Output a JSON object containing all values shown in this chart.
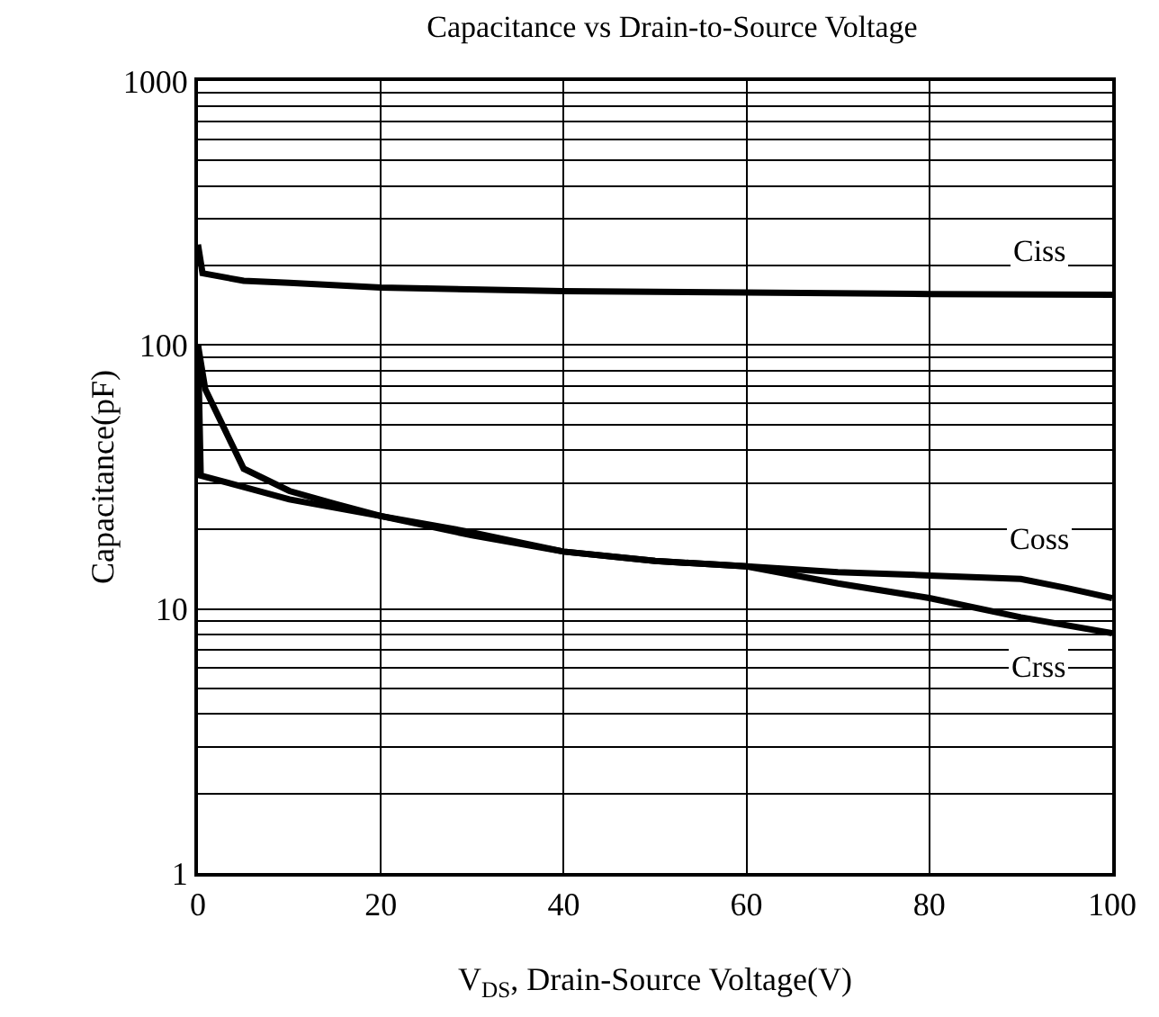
{
  "chart_data": {
    "type": "line",
    "title": "Capacitance vs Drain-to-Source Voltage",
    "xlabel": "V$_{DS}$, Drain-Source Voltage(V)",
    "ylabel": "Capacitance(pF)",
    "log": "y",
    "grid": true,
    "marker": "none",
    "line_style": "solid",
    "xlim": [
      0,
      100
    ],
    "xticks": [
      0,
      20,
      40,
      60,
      80,
      100
    ],
    "ylim": [
      1,
      1000
    ],
    "yticks": [
      1,
      10,
      100,
      1000
    ],
    "series": [
      {
        "name": "Ciss",
        "color": "#000000",
        "x": [
          0,
          0.5,
          5,
          10,
          20,
          40,
          60,
          80,
          100
        ],
        "values": [
          240,
          187,
          175,
          172,
          165,
          160,
          158,
          156,
          155
        ]
      },
      {
        "name": "Coss",
        "color": "#000000",
        "x": [
          0,
          0.8,
          5,
          10,
          15,
          20,
          30,
          40,
          50,
          60,
          70,
          80,
          90,
          95,
          100
        ],
        "values": [
          100,
          68,
          34,
          28,
          25,
          22.5,
          19,
          16.5,
          15.2,
          14.5,
          13.8,
          13.4,
          13,
          12,
          11
        ]
      },
      {
        "name": "Crss",
        "color": "#000000",
        "x": [
          0,
          0.3,
          5,
          10,
          20,
          30,
          40,
          50,
          60,
          70,
          80,
          90,
          100
        ],
        "values": [
          100,
          32,
          29,
          26,
          22.5,
          19.5,
          16.5,
          15.2,
          14.5,
          12.5,
          11,
          9.3,
          8.1
        ]
      }
    ]
  }
}
